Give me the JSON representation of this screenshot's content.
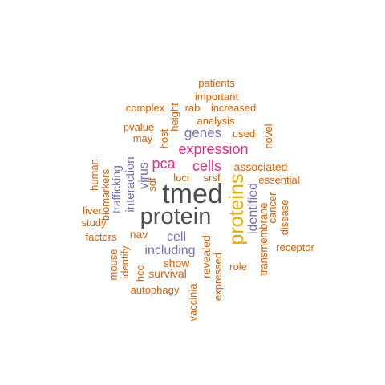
{
  "colors": {
    "dark": "#4d4d4d",
    "orange": "#d95f02",
    "purple": "#7570b3",
    "magenta": "#e7298a",
    "gold": "#e6ab02"
  },
  "words": [
    {
      "text": "tmed",
      "color": "dark"
    },
    {
      "text": "protein",
      "color": "dark"
    },
    {
      "text": "proteins",
      "color": "gold"
    },
    {
      "text": "expression",
      "color": "magenta"
    },
    {
      "text": "cells",
      "color": "magenta"
    },
    {
      "text": "pca",
      "color": "magenta"
    },
    {
      "text": "genes",
      "color": "purple"
    },
    {
      "text": "cell",
      "color": "purple"
    },
    {
      "text": "including",
      "color": "purple"
    },
    {
      "text": "identified",
      "color": "purple"
    },
    {
      "text": "interaction",
      "color": "purple"
    },
    {
      "text": "trafficking",
      "color": "purple"
    },
    {
      "text": "virus",
      "color": "purple"
    },
    {
      "text": "patients",
      "color": "orange"
    },
    {
      "text": "important",
      "color": "orange"
    },
    {
      "text": "complex",
      "color": "orange"
    },
    {
      "text": "rab",
      "color": "orange"
    },
    {
      "text": "increased",
      "color": "orange"
    },
    {
      "text": "analysis",
      "color": "orange"
    },
    {
      "text": "height",
      "color": "orange"
    },
    {
      "text": "pvalue",
      "color": "orange"
    },
    {
      "text": "host",
      "color": "orange"
    },
    {
      "text": "used",
      "color": "orange"
    },
    {
      "text": "novel",
      "color": "orange"
    },
    {
      "text": "may",
      "color": "orange"
    },
    {
      "text": "associated",
      "color": "orange"
    },
    {
      "text": "human",
      "color": "orange"
    },
    {
      "text": "biomarkers",
      "color": "orange"
    },
    {
      "text": "sdf",
      "color": "orange"
    },
    {
      "text": "loci",
      "color": "orange"
    },
    {
      "text": "srsf",
      "color": "orange"
    },
    {
      "text": "essential",
      "color": "orange"
    },
    {
      "text": "cancer",
      "color": "orange"
    },
    {
      "text": "disease",
      "color": "orange"
    },
    {
      "text": "liver",
      "color": "orange"
    },
    {
      "text": "study",
      "color": "orange"
    },
    {
      "text": "factors",
      "color": "orange"
    },
    {
      "text": "nav",
      "color": "orange"
    },
    {
      "text": "revealed",
      "color": "orange"
    },
    {
      "text": "receptor",
      "color": "orange"
    },
    {
      "text": "transmembrane",
      "color": "orange"
    },
    {
      "text": "mouse",
      "color": "orange"
    },
    {
      "text": "identify",
      "color": "orange"
    },
    {
      "text": "show",
      "color": "orange"
    },
    {
      "text": "role",
      "color": "orange"
    },
    {
      "text": "expressed",
      "color": "orange"
    },
    {
      "text": "hcc",
      "color": "orange"
    },
    {
      "text": "survival",
      "color": "orange"
    },
    {
      "text": "autophagy",
      "color": "orange"
    },
    {
      "text": "vaccinia",
      "color": "orange"
    }
  ]
}
